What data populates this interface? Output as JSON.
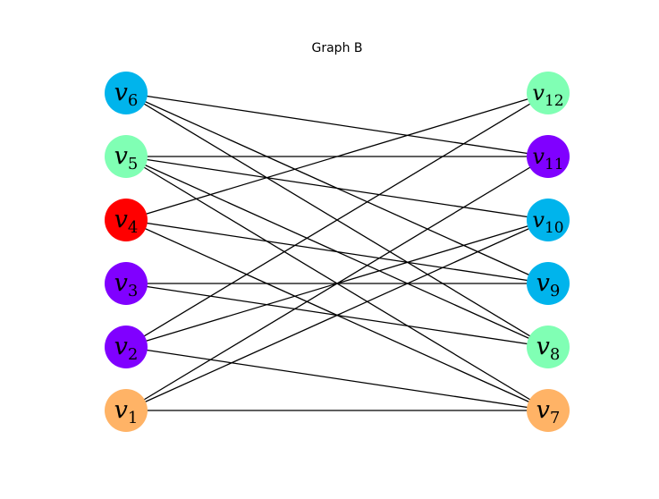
{
  "title": "Graph B",
  "nodes": [
    {
      "id": "v1",
      "base": "v",
      "sub": "1",
      "side": "left",
      "rank": 1,
      "color": "#ffb366"
    },
    {
      "id": "v2",
      "base": "v",
      "sub": "2",
      "side": "left",
      "rank": 2,
      "color": "#8000ff"
    },
    {
      "id": "v3",
      "base": "v",
      "sub": "3",
      "side": "left",
      "rank": 3,
      "color": "#8000ff"
    },
    {
      "id": "v4",
      "base": "v",
      "sub": "4",
      "side": "left",
      "rank": 4,
      "color": "#ff0000"
    },
    {
      "id": "v5",
      "base": "v",
      "sub": "5",
      "side": "left",
      "rank": 5,
      "color": "#80ffb4"
    },
    {
      "id": "v6",
      "base": "v",
      "sub": "6",
      "side": "left",
      "rank": 6,
      "color": "#00b4ec"
    },
    {
      "id": "v7",
      "base": "v",
      "sub": "7",
      "side": "right",
      "rank": 1,
      "color": "#ffb366"
    },
    {
      "id": "v8",
      "base": "v",
      "sub": "8",
      "side": "right",
      "rank": 2,
      "color": "#80ffb4"
    },
    {
      "id": "v9",
      "base": "v",
      "sub": "9",
      "side": "right",
      "rank": 3,
      "color": "#00b4ec"
    },
    {
      "id": "v10",
      "base": "v",
      "sub": "10",
      "side": "right",
      "rank": 4,
      "color": "#00b4ec"
    },
    {
      "id": "v11",
      "base": "v",
      "sub": "11",
      "side": "right",
      "rank": 5,
      "color": "#8000ff"
    },
    {
      "id": "v12",
      "base": "v",
      "sub": "12",
      "side": "right",
      "rank": 6,
      "color": "#80ffb4"
    }
  ],
  "edges": [
    [
      "v1",
      "v7"
    ],
    [
      "v1",
      "v10"
    ],
    [
      "v1",
      "v11"
    ],
    [
      "v2",
      "v7"
    ],
    [
      "v2",
      "v10"
    ],
    [
      "v2",
      "v12"
    ],
    [
      "v3",
      "v8"
    ],
    [
      "v3",
      "v9"
    ],
    [
      "v4",
      "v7"
    ],
    [
      "v4",
      "v9"
    ],
    [
      "v4",
      "v12"
    ],
    [
      "v5",
      "v7"
    ],
    [
      "v5",
      "v8"
    ],
    [
      "v5",
      "v10"
    ],
    [
      "v5",
      "v11"
    ],
    [
      "v6",
      "v8"
    ],
    [
      "v6",
      "v9"
    ],
    [
      "v6",
      "v11"
    ]
  ]
}
